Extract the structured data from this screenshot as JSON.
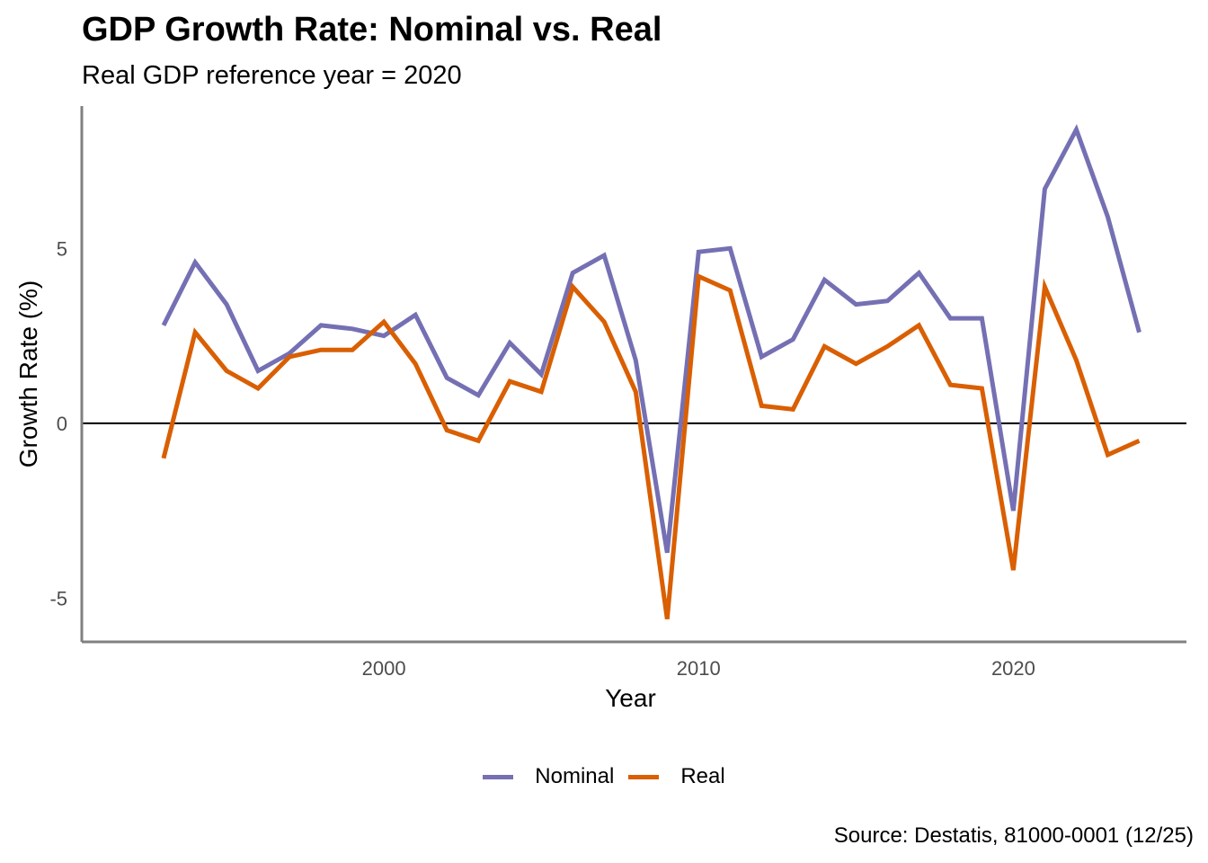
{
  "chart_data": {
    "type": "line",
    "title": "GDP Growth Rate: Nominal vs. Real",
    "subtitle": "Real GDP reference year = 2020",
    "xlabel": "Year",
    "ylabel": "Growth Rate (%)",
    "caption": "Source: Destatis, 81000-0001 (12/25)",
    "x": [
      1993,
      1994,
      1995,
      1996,
      1997,
      1998,
      1999,
      2000,
      2001,
      2002,
      2003,
      2004,
      2005,
      2006,
      2007,
      2008,
      2009,
      2010,
      2011,
      2012,
      2013,
      2014,
      2015,
      2016,
      2017,
      2018,
      2019,
      2020,
      2021,
      2022,
      2023,
      2024
    ],
    "series": [
      {
        "name": "Nominal",
        "color": "#7570b3",
        "values": [
          2.8,
          4.6,
          3.4,
          1.5,
          2.0,
          2.8,
          2.7,
          2.5,
          3.1,
          1.3,
          0.8,
          2.3,
          1.4,
          4.3,
          4.8,
          1.8,
          -3.7,
          4.9,
          5.0,
          1.9,
          2.4,
          4.1,
          3.4,
          3.5,
          4.3,
          3.0,
          3.0,
          -2.5,
          6.7,
          8.4,
          5.9,
          2.6
        ]
      },
      {
        "name": "Real",
        "color": "#d95f02",
        "values": [
          -1.0,
          2.6,
          1.5,
          1.0,
          1.9,
          2.1,
          2.1,
          2.9,
          1.7,
          -0.2,
          -0.5,
          1.2,
          0.9,
          3.9,
          2.9,
          0.9,
          -5.6,
          4.2,
          3.8,
          0.5,
          0.4,
          2.2,
          1.7,
          2.2,
          2.8,
          1.1,
          1.0,
          -4.2,
          3.9,
          1.8,
          -0.9,
          -0.5
        ]
      }
    ],
    "xticks": [
      2000,
      2010,
      2020
    ],
    "xtick_labels": [
      "2000",
      "2010",
      "2020"
    ],
    "yticks": [
      -5,
      0,
      5
    ],
    "ytick_labels": [
      "-5",
      "0",
      "5"
    ],
    "xlim": [
      1990.4,
      2025.5
    ],
    "ylim": [
      -6.25,
      9.07
    ],
    "reference_line": 0,
    "grid": false,
    "legend_position": "bottom"
  }
}
